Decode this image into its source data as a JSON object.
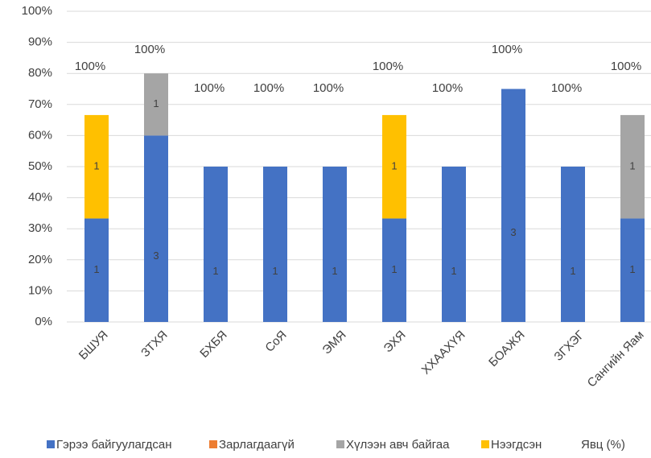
{
  "chart_data": {
    "type": "stacked_bar",
    "categories": [
      "БШУЯ",
      "ЗТХЯ",
      "БХБЯ",
      "СоЯ",
      "ЭМЯ",
      "ЭХЯ",
      "ХХААХҮЯ",
      "БОАЖЯ",
      "ЗГХЭГ",
      "Сангийн Яам"
    ],
    "series": [
      {
        "name": "Гэрээ байгуулагдсан",
        "color": "#4472c4",
        "values": [
          33.3,
          60,
          50,
          50,
          50,
          33.3,
          50,
          75,
          50,
          33.3
        ],
        "counts": [
          1,
          3,
          1,
          1,
          1,
          1,
          1,
          3,
          1,
          1
        ]
      },
      {
        "name": "Зарлагдаагүй",
        "color": "#ed7d31",
        "values": [
          null,
          null,
          null,
          null,
          null,
          null,
          null,
          null,
          null,
          null
        ],
        "counts": [
          null,
          null,
          null,
          null,
          null,
          null,
          null,
          null,
          null,
          null
        ]
      },
      {
        "name": "Хүлээн авч байгаа",
        "color": "#a5a5a5",
        "values": [
          null,
          20,
          null,
          null,
          null,
          null,
          null,
          null,
          null,
          33.3
        ],
        "counts": [
          null,
          1,
          null,
          null,
          null,
          null,
          null,
          null,
          null,
          1
        ]
      },
      {
        "name": "Нээгдсэн",
        "color": "#ffc000",
        "values": [
          33.3,
          null,
          null,
          null,
          null,
          33.3,
          null,
          null,
          null,
          null
        ],
        "counts": [
          1,
          null,
          null,
          null,
          null,
          1,
          null,
          null,
          null,
          null
        ]
      }
    ],
    "progress": {
      "name": "Явц (%)",
      "values": [
        100,
        100,
        100,
        100,
        100,
        100,
        100,
        100,
        100,
        100
      ],
      "value_labels": [
        "100%",
        "100%",
        "100%",
        "100%",
        "100%",
        "100%",
        "100%",
        "100%",
        "100%",
        "100%"
      ]
    },
    "ylim": [
      0,
      100
    ],
    "yticks": [
      {
        "value": 0,
        "label": "0%"
      },
      {
        "value": 10,
        "label": "10%"
      },
      {
        "value": 20,
        "label": "20%"
      },
      {
        "value": 30,
        "label": "30%"
      },
      {
        "value": 40,
        "label": "40%"
      },
      {
        "value": 50,
        "label": "50%"
      },
      {
        "value": 60,
        "label": "60%"
      },
      {
        "value": 70,
        "label": "70%"
      },
      {
        "value": 80,
        "label": "80%"
      },
      {
        "value": 90,
        "label": "90%"
      },
      {
        "value": 100,
        "label": "100%"
      }
    ],
    "grid": true,
    "legend": "bottom"
  }
}
